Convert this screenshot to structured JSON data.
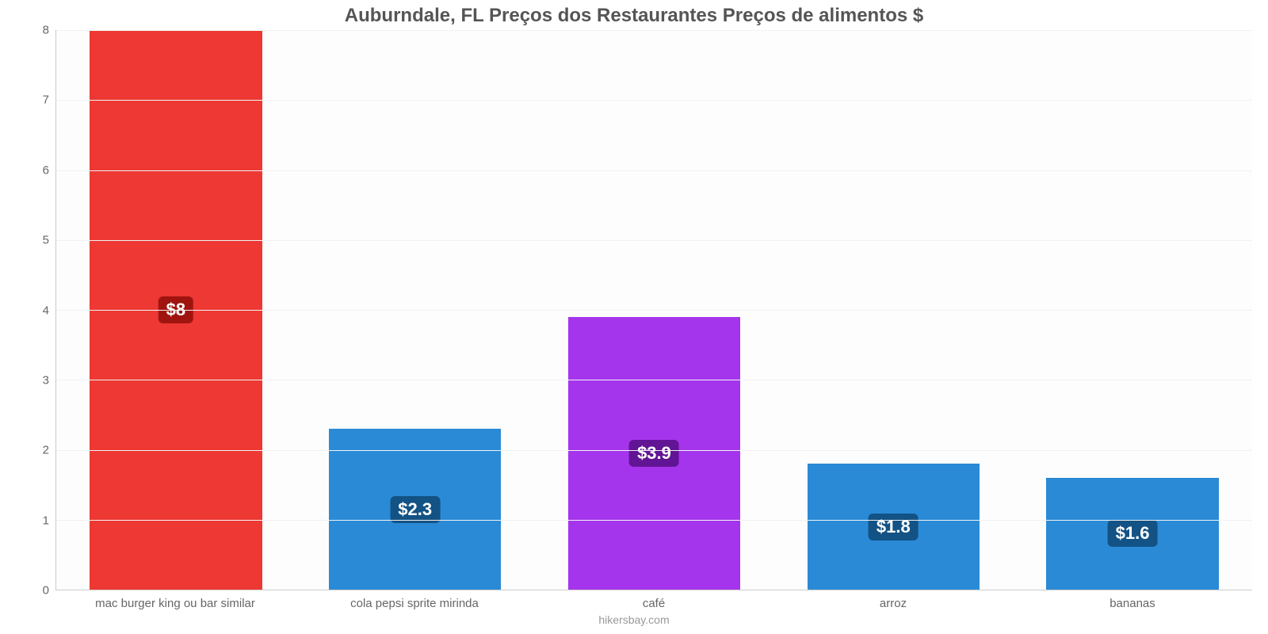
{
  "chart": {
    "type": "bar",
    "title": "Auburndale, FL Preços dos Restaurantes Preços de alimentos $",
    "title_fontsize": 24,
    "title_color": "#555555",
    "source": "hikersbay.com",
    "source_color": "#999999",
    "background_color": "#ffffff",
    "plot_background": "#fdfdfd",
    "grid_color": "#f2f2f2",
    "axis_line_color": "#cccccc",
    "tick_label_color": "#666666",
    "tick_fontsize": 15,
    "ylim": [
      0,
      8
    ],
    "ytick_step": 1,
    "bar_width_pct": 72,
    "value_badge_fontsize": 22,
    "categories": [
      "mac burger king ou bar similar",
      "cola pepsi sprite mirinda",
      "café",
      "arroz",
      "bananas"
    ],
    "values": [
      8,
      2.3,
      3.9,
      1.8,
      1.6
    ],
    "value_labels": [
      "$8",
      "$2.3",
      "$3.9",
      "$1.8",
      "$1.6"
    ],
    "bar_colors": [
      "#ed3833",
      "#2a8ad6",
      "#a535ec",
      "#2a8ad6",
      "#2a8ad6"
    ],
    "badge_bg_colors": [
      "#a01410",
      "#135284",
      "#611494",
      "#135284",
      "#135284"
    ]
  }
}
